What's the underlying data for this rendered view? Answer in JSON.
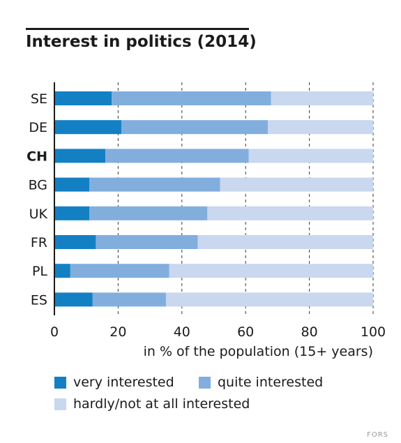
{
  "title": "Interest in politics (2014)",
  "credit": "FORS",
  "colors": {
    "very": "#1380c4",
    "quite": "#82aede",
    "hardly": "#c9d7ef"
  },
  "chart_data": {
    "type": "bar",
    "orientation": "horizontal",
    "stacked": true,
    "title": "Interest in politics (2014)",
    "xlabel": "in % of the population (15+ years)",
    "xlim": [
      0,
      100
    ],
    "xticks": [
      0,
      20,
      40,
      60,
      80,
      100
    ],
    "grid": "dashed vertical",
    "categories": [
      "SE",
      "DE",
      "CH",
      "BG",
      "UK",
      "FR",
      "PL",
      "ES"
    ],
    "highlight": "CH",
    "series": [
      {
        "name": "very interested",
        "color": "#1380c4",
        "values": [
          18,
          21,
          16,
          11,
          11,
          13,
          5,
          12
        ]
      },
      {
        "name": "quite interested",
        "color": "#82aede",
        "values": [
          50,
          46,
          45,
          41,
          37,
          32,
          31,
          23
        ]
      },
      {
        "name": "hardly/not at all interested",
        "color": "#c9d7ef",
        "values": [
          32,
          33,
          39,
          48,
          52,
          55,
          64,
          65
        ]
      }
    ]
  }
}
